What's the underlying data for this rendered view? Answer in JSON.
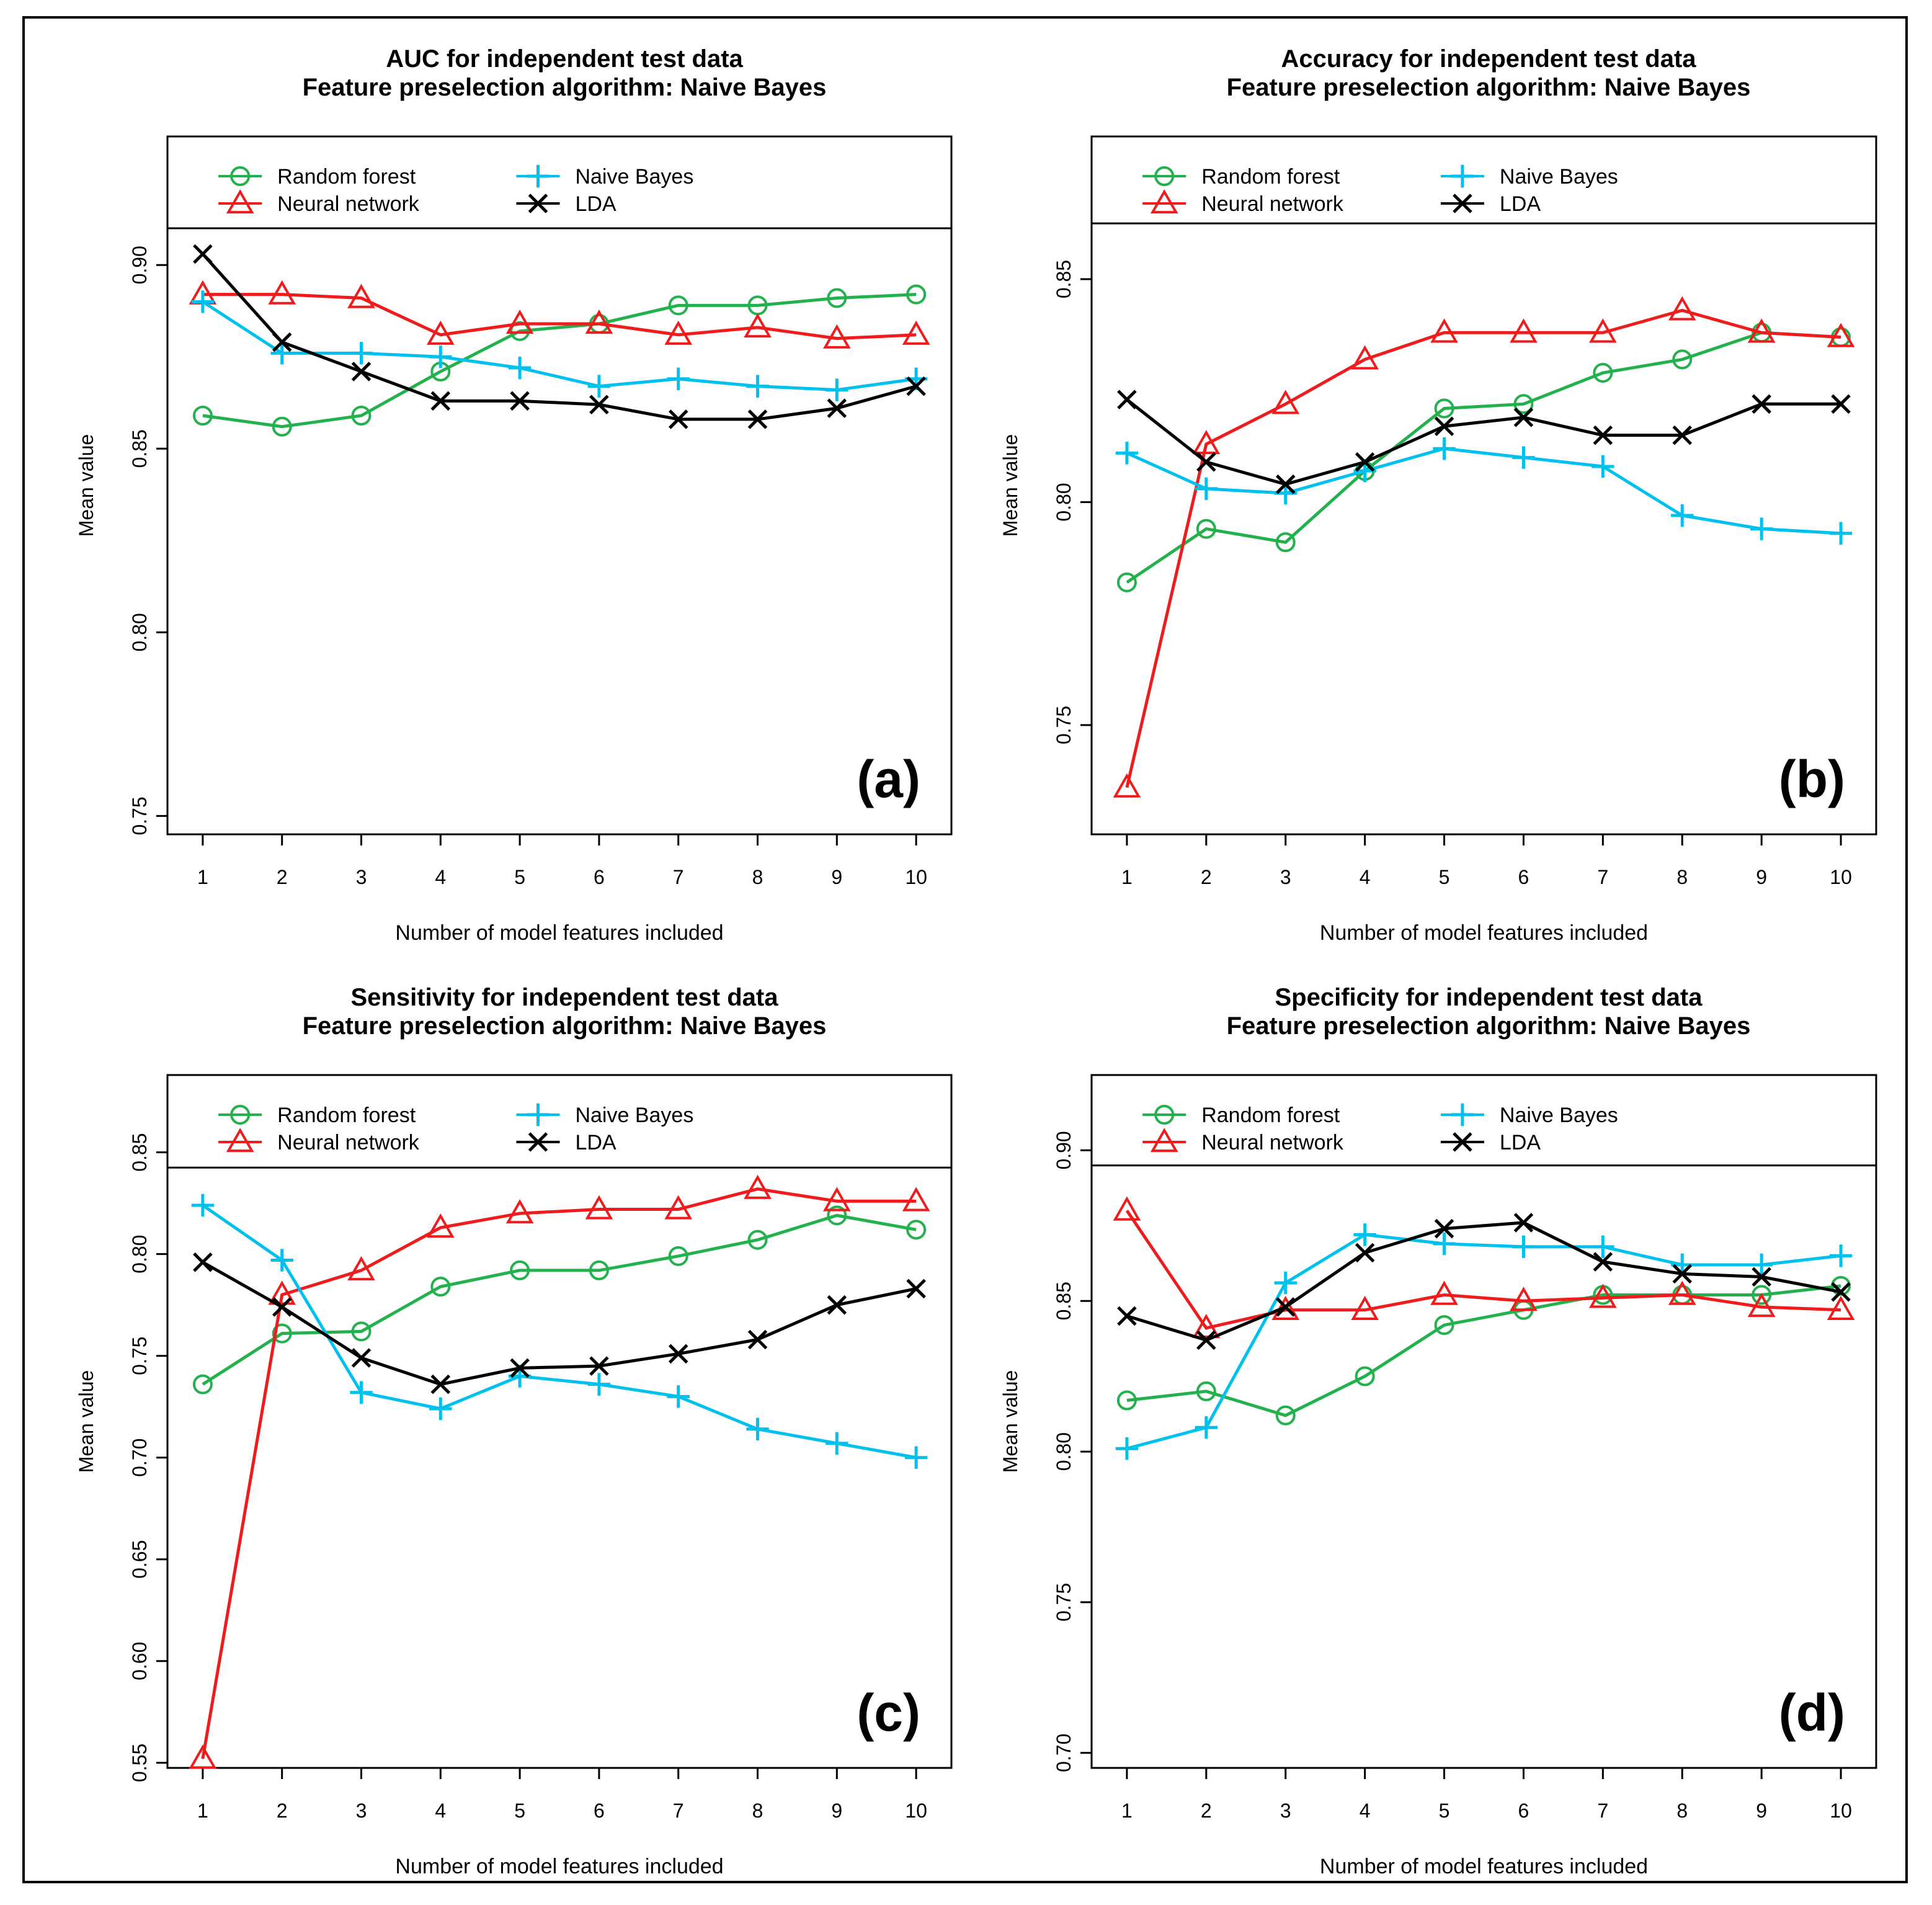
{
  "chart_data": [
    {
      "type": "line",
      "panel_label": "(a)",
      "title": "AUC for independent test data",
      "subtitle": "Feature preselection algorithm: Naive Bayes",
      "xlabel": "Number of model features included",
      "ylabel": "Mean value",
      "x": [
        1,
        2,
        3,
        4,
        5,
        6,
        7,
        8,
        9,
        10
      ],
      "ylim": [
        0.745,
        0.91
      ],
      "yticks": [
        0.75,
        0.8,
        0.85,
        0.9
      ],
      "ytick_labels": [
        "0.75",
        "0.80",
        "0.85",
        "0.90"
      ],
      "legend_ymax": 0.935,
      "series": [
        {
          "name": "Random forest",
          "color": "#22b14c",
          "marker": "circle",
          "values": [
            0.859,
            0.856,
            0.859,
            0.871,
            0.882,
            0.884,
            0.889,
            0.889,
            0.891,
            0.892
          ]
        },
        {
          "name": "Neural network",
          "color": "#ee1c1c",
          "marker": "triangle",
          "values": [
            0.892,
            0.892,
            0.891,
            0.881,
            0.884,
            0.884,
            0.881,
            0.883,
            0.88,
            0.881
          ]
        },
        {
          "name": "Naive Bayes",
          "color": "#00c0ee",
          "marker": "plus",
          "values": [
            0.89,
            0.876,
            0.876,
            0.875,
            0.872,
            0.867,
            0.869,
            0.867,
            0.866,
            0.869
          ]
        },
        {
          "name": "LDA",
          "color": "#000000",
          "marker": "cross",
          "values": [
            0.903,
            0.879,
            0.871,
            0.863,
            0.863,
            0.862,
            0.858,
            0.858,
            0.861,
            0.867
          ]
        }
      ]
    },
    {
      "type": "line",
      "panel_label": "(b)",
      "title": "Accuracy for independent test data",
      "subtitle": "Feature preselection algorithm: Naive Bayes",
      "xlabel": "Number of model features included",
      "ylabel": "Mean value",
      "x": [
        1,
        2,
        3,
        4,
        5,
        6,
        7,
        8,
        9,
        10
      ],
      "ylim": [
        0.7255,
        0.8625
      ],
      "yticks": [
        0.75,
        0.8,
        0.85
      ],
      "ytick_labels": [
        "0.75",
        "0.80",
        "0.85"
      ],
      "legend_ymax": 0.882,
      "series": [
        {
          "name": "Random forest",
          "color": "#22b14c",
          "marker": "circle",
          "values": [
            0.782,
            0.794,
            0.791,
            0.807,
            0.821,
            0.822,
            0.829,
            0.832,
            0.838,
            0.837
          ]
        },
        {
          "name": "Neural network",
          "color": "#ee1c1c",
          "marker": "triangle",
          "values": [
            0.736,
            0.813,
            0.822,
            0.832,
            0.838,
            0.838,
            0.838,
            0.843,
            0.838,
            0.837
          ]
        },
        {
          "name": "Naive Bayes",
          "color": "#00c0ee",
          "marker": "plus",
          "values": [
            0.811,
            0.803,
            0.802,
            0.807,
            0.812,
            0.81,
            0.808,
            0.797,
            0.794,
            0.793
          ]
        },
        {
          "name": "LDA",
          "color": "#000000",
          "marker": "cross",
          "values": [
            0.823,
            0.809,
            0.804,
            0.809,
            0.817,
            0.819,
            0.815,
            0.815,
            0.822,
            0.822
          ]
        }
      ]
    },
    {
      "type": "line",
      "panel_label": "(c)",
      "title": "Sensitivity for independent test data",
      "subtitle": "Feature preselection algorithm: Naive Bayes",
      "xlabel": "Number of model features included",
      "ylabel": "Mean value",
      "x": [
        1,
        2,
        3,
        4,
        5,
        6,
        7,
        8,
        9,
        10
      ],
      "ylim": [
        0.5475,
        0.8425
      ],
      "yticks": [
        0.55,
        0.6,
        0.65,
        0.7,
        0.75,
        0.8,
        0.85
      ],
      "ytick_labels": [
        "0.55",
        "0.60",
        "0.65",
        "0.70",
        "0.75",
        "0.80",
        "0.85"
      ],
      "legend_ymax": 0.888,
      "series": [
        {
          "name": "Random forest",
          "color": "#22b14c",
          "marker": "circle",
          "values": [
            0.736,
            0.761,
            0.762,
            0.784,
            0.792,
            0.792,
            0.799,
            0.807,
            0.819,
            0.812
          ]
        },
        {
          "name": "Neural network",
          "color": "#ee1c1c",
          "marker": "triangle",
          "values": [
            0.552,
            0.78,
            0.792,
            0.813,
            0.82,
            0.822,
            0.822,
            0.832,
            0.826,
            0.826
          ]
        },
        {
          "name": "Naive Bayes",
          "color": "#00c0ee",
          "marker": "plus",
          "values": [
            0.824,
            0.797,
            0.732,
            0.724,
            0.74,
            0.736,
            0.73,
            0.714,
            0.707,
            0.7
          ]
        },
        {
          "name": "LDA",
          "color": "#000000",
          "marker": "cross",
          "values": [
            0.796,
            0.774,
            0.749,
            0.736,
            0.744,
            0.745,
            0.751,
            0.758,
            0.775,
            0.783
          ]
        }
      ]
    },
    {
      "type": "line",
      "panel_label": "(d)",
      "title": "Specificity for independent test data",
      "subtitle": "Feature preselection algorithm: Naive Bayes",
      "xlabel": "Number of model features included",
      "ylabel": "Mean value",
      "x": [
        1,
        2,
        3,
        4,
        5,
        6,
        7,
        8,
        9,
        10
      ],
      "ylim": [
        0.695,
        0.895
      ],
      "yticks": [
        0.7,
        0.75,
        0.8,
        0.85,
        0.9
      ],
      "ytick_labels": [
        "0.70",
        "0.75",
        "0.80",
        "0.85",
        "0.90"
      ],
      "legend_ymax": 0.925,
      "series": [
        {
          "name": "Random forest",
          "color": "#22b14c",
          "marker": "circle",
          "values": [
            0.817,
            0.82,
            0.812,
            0.825,
            0.842,
            0.847,
            0.852,
            0.852,
            0.852,
            0.855
          ]
        },
        {
          "name": "Neural network",
          "color": "#ee1c1c",
          "marker": "triangle",
          "values": [
            0.88,
            0.841,
            0.847,
            0.847,
            0.852,
            0.85,
            0.851,
            0.852,
            0.848,
            0.847
          ]
        },
        {
          "name": "Naive Bayes",
          "color": "#00c0ee",
          "marker": "plus",
          "values": [
            0.801,
            0.808,
            0.856,
            0.872,
            0.869,
            0.868,
            0.868,
            0.862,
            0.862,
            0.865
          ]
        },
        {
          "name": "LDA",
          "color": "#000000",
          "marker": "cross",
          "values": [
            0.845,
            0.837,
            0.848,
            0.866,
            0.874,
            0.876,
            0.863,
            0.859,
            0.858,
            0.853
          ]
        }
      ]
    }
  ]
}
